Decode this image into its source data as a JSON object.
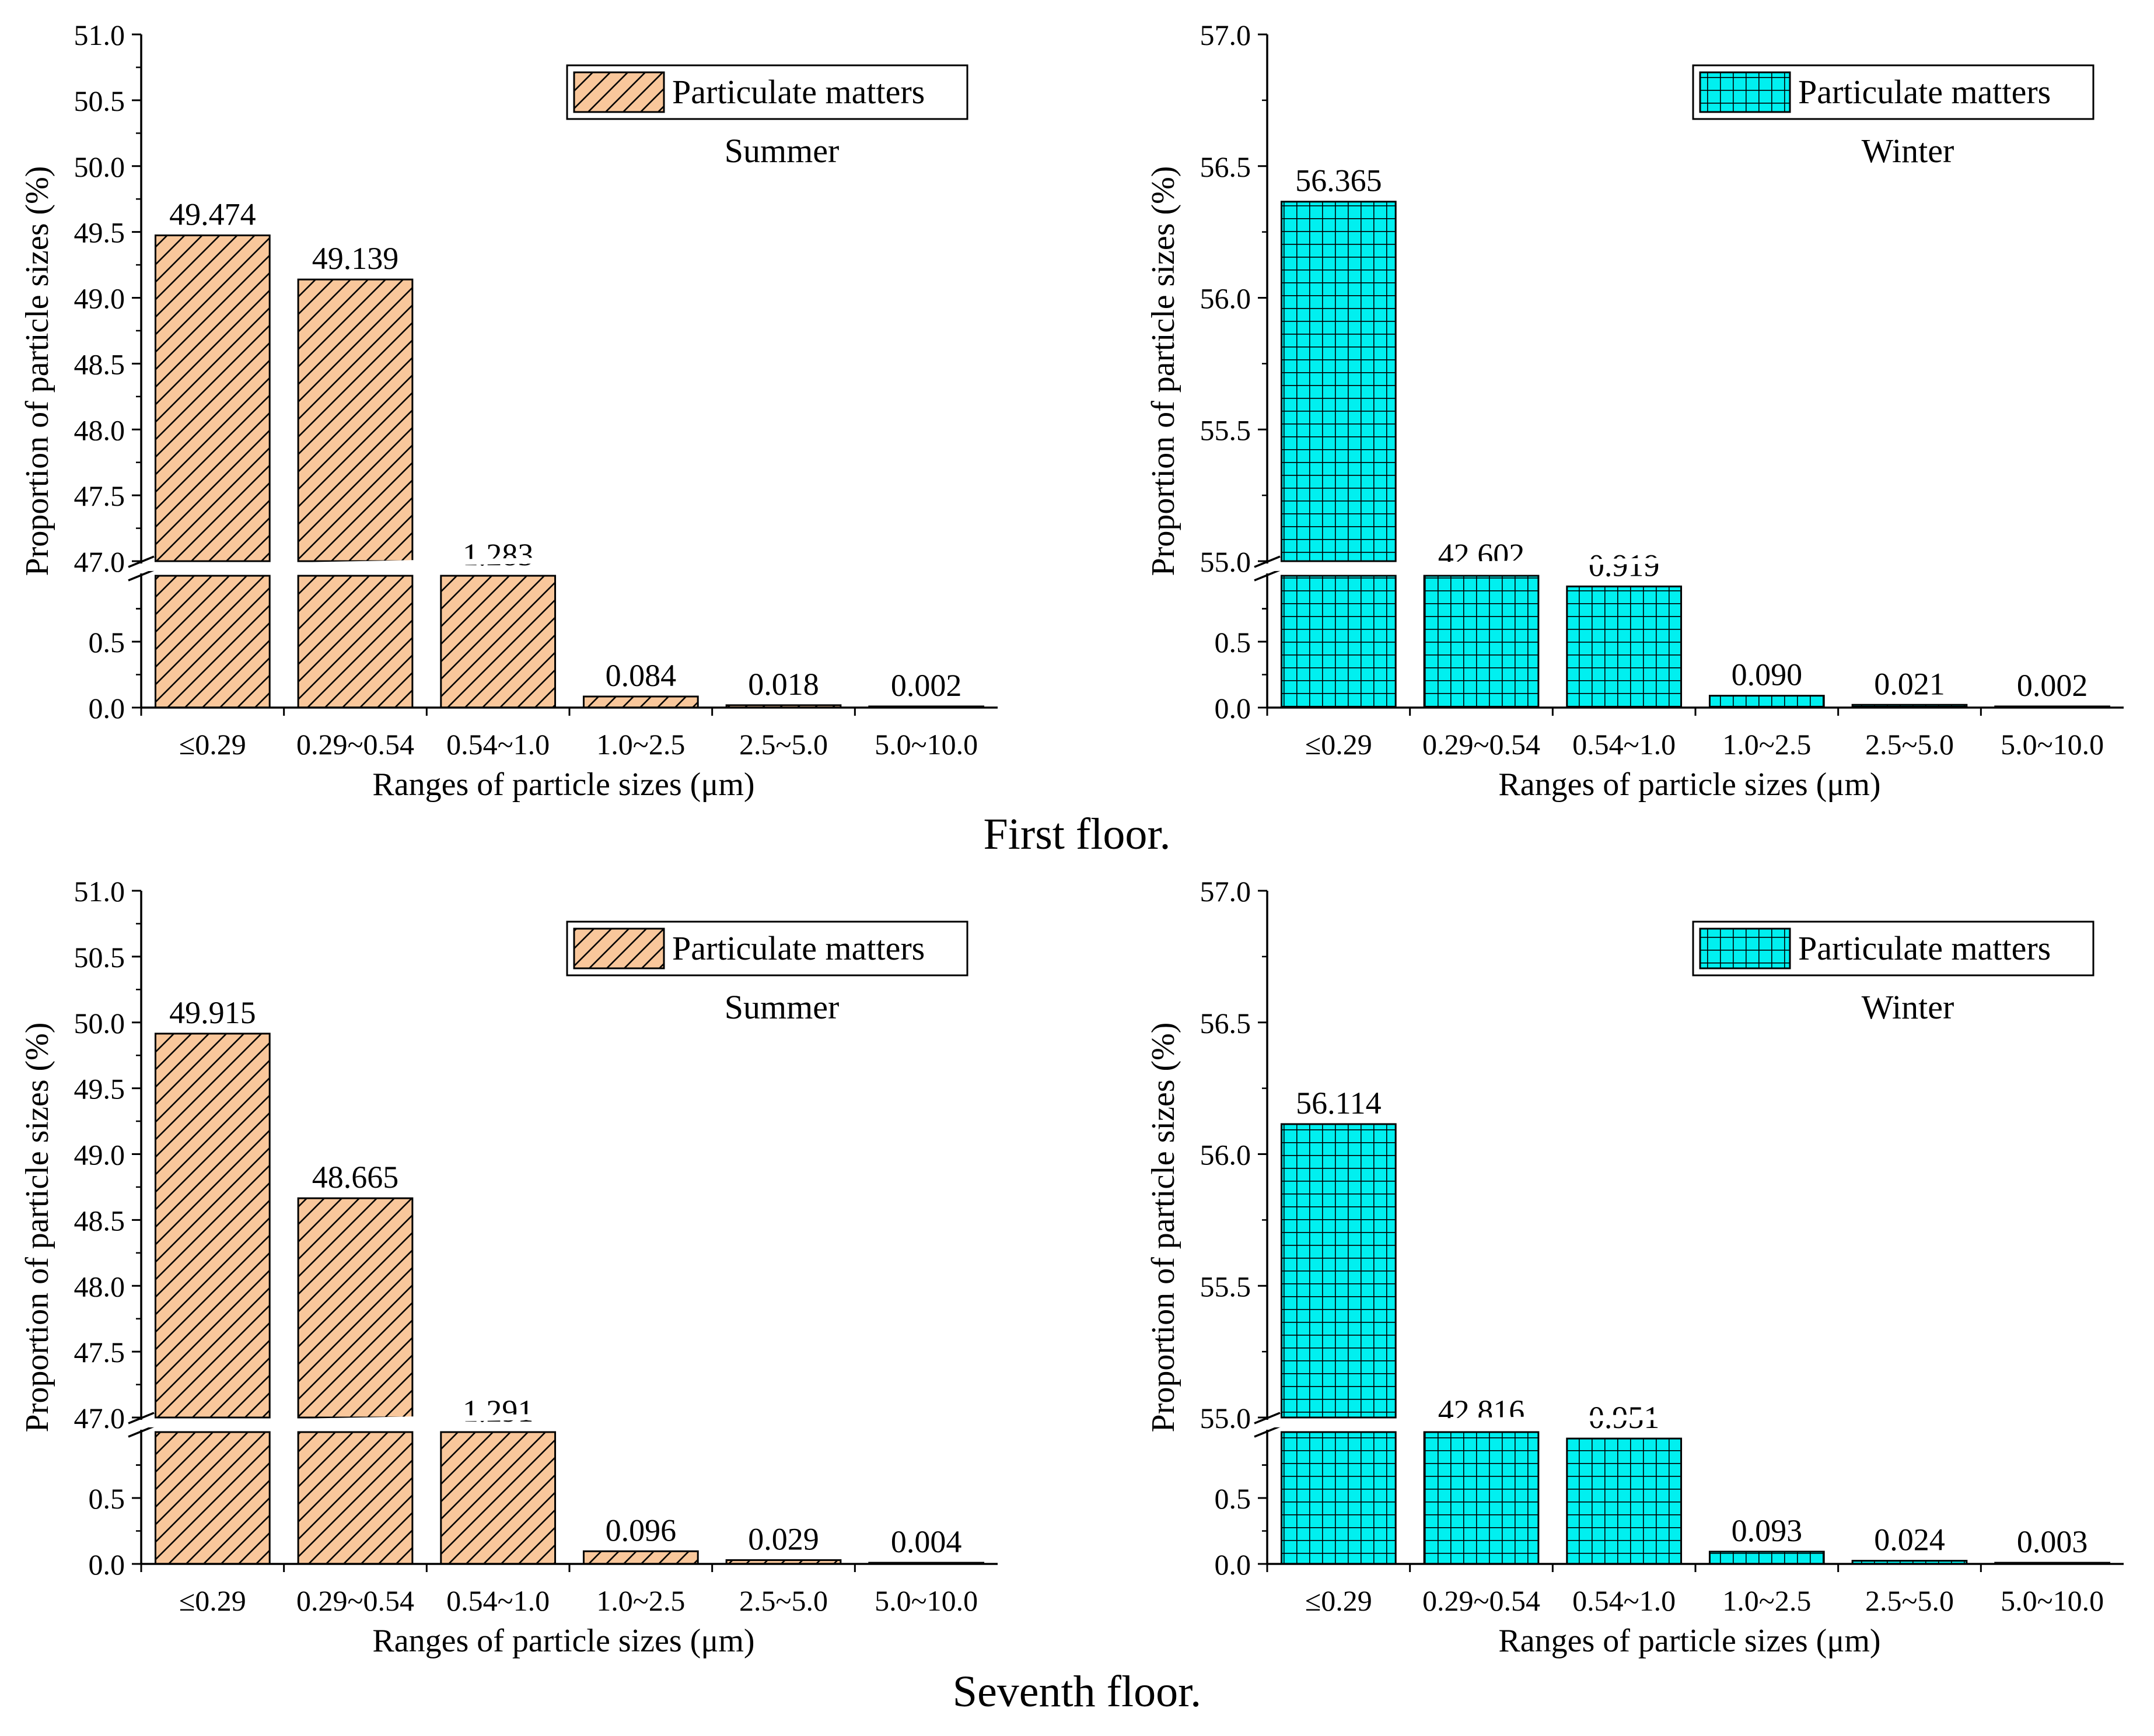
{
  "figure": {
    "panel_captions": [
      "First floor.",
      "Seventh floor."
    ]
  },
  "colors": {
    "summer_fill": "#F9C79B",
    "summer_hatch": "#000000",
    "winter_fill": "#00F0F0",
    "winter_grid": "#000000"
  },
  "chart_data": [
    {
      "id": "first-summer",
      "type": "bar",
      "floor": "First floor.",
      "season_label": "Summer",
      "legend": "Particulate matters",
      "pattern": "hatch",
      "xlabel": "Ranges of particle sizes (μm)",
      "ylabel": "Proportion of particle sizes (%)",
      "categories": [
        "≤0.29",
        "0.29~0.54",
        "0.54~1.0",
        "1.0~2.5",
        "2.5~5.0",
        "5.0~10.0"
      ],
      "values": [
        49.474,
        49.139,
        1.283,
        0.084,
        0.018,
        0.002
      ],
      "value_labels": [
        "49.474",
        "49.139",
        "1.283",
        "0.084",
        "0.018",
        "0.002"
      ],
      "y_break": true,
      "ylim_lower": [
        0,
        1.0
      ],
      "ylim_upper": [
        47.0,
        51.0
      ],
      "yticks_lower": [
        "0.0",
        "0.5"
      ],
      "yticks_upper": [
        "47.0",
        "47.5",
        "48.0",
        "48.5",
        "49.0",
        "49.5",
        "50.0",
        "50.5",
        "51.0"
      ]
    },
    {
      "id": "first-winter",
      "type": "bar",
      "floor": "First floor.",
      "season_label": "Winter",
      "legend": "Particulate matters",
      "pattern": "grid",
      "xlabel": "Ranges of particle sizes (μm)",
      "ylabel": "Proportion of particle sizes (%)",
      "categories": [
        "≤0.29",
        "0.29~0.54",
        "0.54~1.0",
        "1.0~2.5",
        "2.5~5.0",
        "5.0~10.0"
      ],
      "values": [
        56.365,
        42.602,
        0.919,
        0.09,
        0.021,
        0.002
      ],
      "value_labels": [
        "56.365",
        "42.602",
        "0.919",
        "0.090",
        "0.021",
        "0.002"
      ],
      "y_break": true,
      "ylim_lower": [
        0,
        1.0
      ],
      "ylim_upper": [
        55.0,
        57.0
      ],
      "yticks_lower": [
        "0.0",
        "0.5"
      ],
      "yticks_upper": [
        "55.0",
        "55.5",
        "56.0",
        "56.5",
        "57.0"
      ]
    },
    {
      "id": "seventh-summer",
      "type": "bar",
      "floor": "Seventh floor.",
      "season_label": "Summer",
      "legend": "Particulate matters",
      "pattern": "hatch",
      "xlabel": "Ranges of particle sizes (μm)",
      "ylabel": "Proportion of particle sizes (%)",
      "categories": [
        "≤0.29",
        "0.29~0.54",
        "0.54~1.0",
        "1.0~2.5",
        "2.5~5.0",
        "5.0~10.0"
      ],
      "values": [
        49.915,
        48.665,
        1.291,
        0.096,
        0.029,
        0.004
      ],
      "value_labels": [
        "49.915",
        "48.665",
        "1.291",
        "0.096",
        "0.029",
        "0.004"
      ],
      "y_break": true,
      "ylim_lower": [
        0,
        1.0
      ],
      "ylim_upper": [
        47.0,
        51.0
      ],
      "yticks_lower": [
        "0.0",
        "0.5"
      ],
      "yticks_upper": [
        "47.0",
        "47.5",
        "48.0",
        "48.5",
        "49.0",
        "49.5",
        "50.0",
        "50.5",
        "51.0"
      ]
    },
    {
      "id": "seventh-winter",
      "type": "bar",
      "floor": "Seventh floor.",
      "season_label": "Winter",
      "legend": "Particulate matters",
      "pattern": "grid",
      "xlabel": "Ranges of particle sizes (μm)",
      "ylabel": "Proportion of particle sizes (%)",
      "categories": [
        "≤0.29",
        "0.29~0.54",
        "0.54~1.0",
        "1.0~2.5",
        "2.5~5.0",
        "5.0~10.0"
      ],
      "values": [
        56.114,
        42.816,
        0.951,
        0.093,
        0.024,
        0.003
      ],
      "value_labels": [
        "56.114",
        "42.816",
        "0.951",
        "0.093",
        "0.024",
        "0.003"
      ],
      "y_break": true,
      "ylim_lower": [
        0,
        1.0
      ],
      "ylim_upper": [
        55.0,
        57.0
      ],
      "yticks_lower": [
        "0.0",
        "0.5"
      ],
      "yticks_upper": [
        "55.0",
        "55.5",
        "56.0",
        "56.5",
        "57.0"
      ]
    }
  ]
}
